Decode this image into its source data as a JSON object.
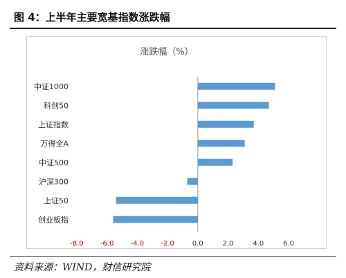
{
  "figure": {
    "title": "图 4：上半年主要宽基指数涨跌幅",
    "source": "资料来源：WIND，财信研究院"
  },
  "colors": {
    "bar": "#5b9bd5",
    "negative_tick": "#c00000",
    "tick": "#333333",
    "zero_line": "#999999"
  },
  "chart_data": {
    "type": "bar",
    "orientation": "horizontal",
    "title": "涨跌幅（%）",
    "xlabel": "",
    "ylabel": "",
    "categories": [
      "中证1000",
      "科创50",
      "上证指数",
      "万得全A",
      "中证500",
      "沪深300",
      "上证50",
      "创业板指"
    ],
    "values": [
      5.1,
      4.7,
      3.7,
      3.1,
      2.3,
      -0.7,
      -5.4,
      -5.6
    ],
    "xlim": [
      -8.0,
      6.0
    ],
    "xticks": [
      "-8.0",
      "-6.0",
      "-4.0",
      "-2.0",
      "0.0",
      "2.0",
      "4.0",
      "6.0"
    ],
    "grid": false,
    "legend": "none"
  }
}
